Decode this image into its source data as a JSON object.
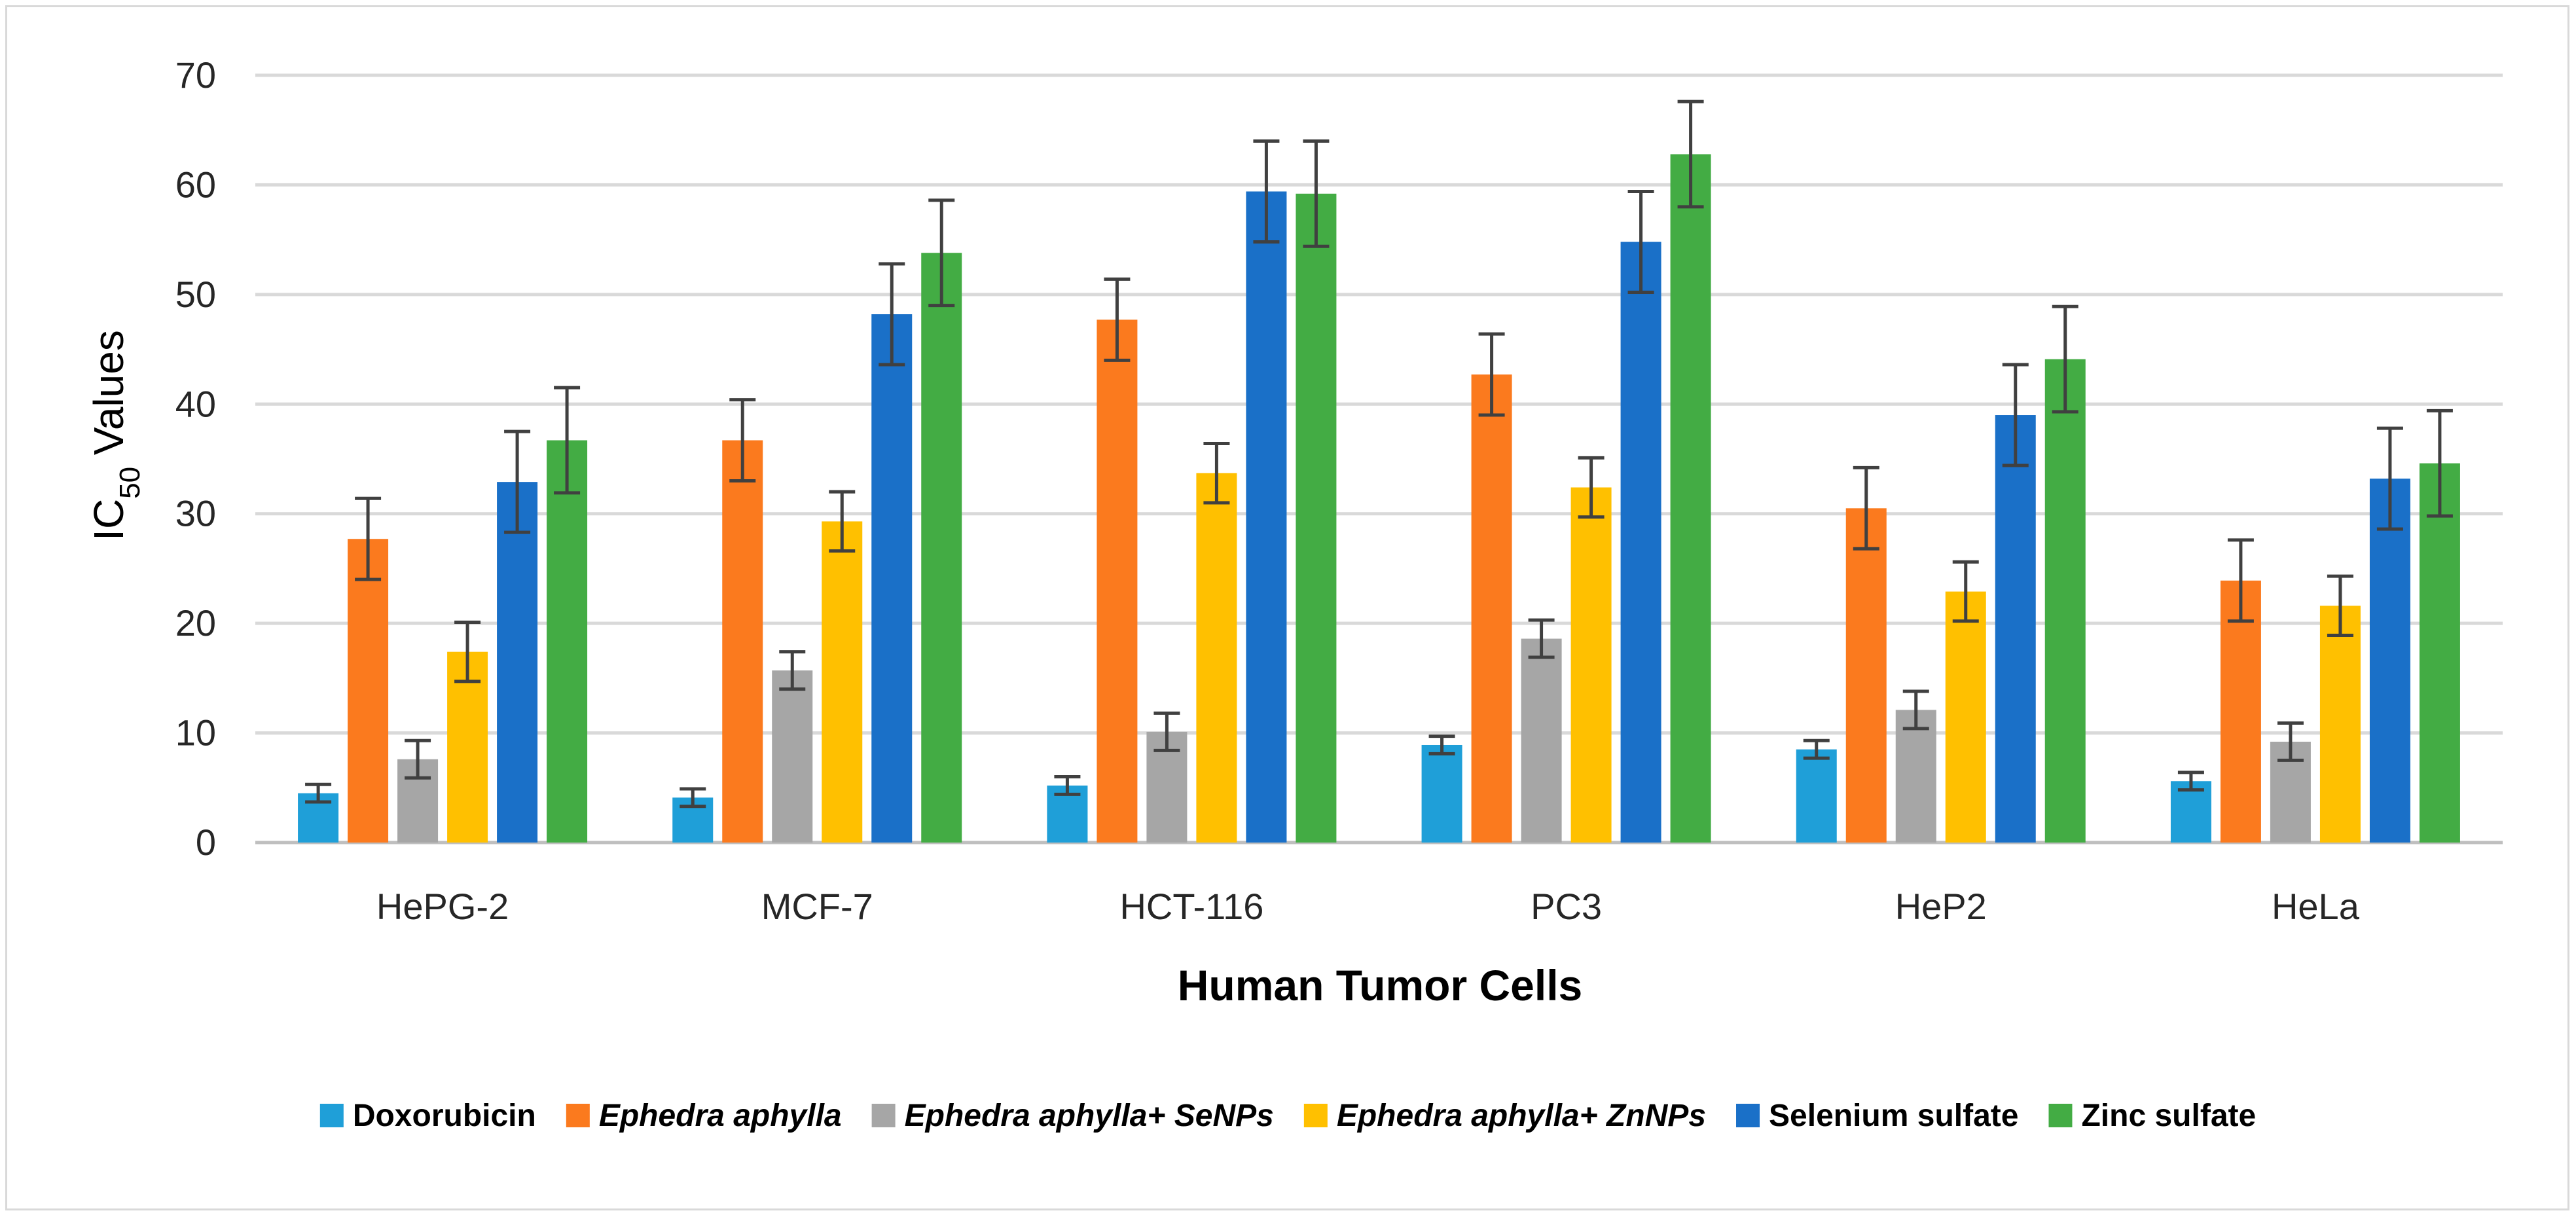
{
  "chart_data": {
    "type": "bar",
    "title": "",
    "xlabel": "Human Tumor Cells",
    "ylabel_main": "IC",
    "ylabel_sub": "50",
    "ylabel_rest": " Values",
    "ylim": [
      0,
      70
    ],
    "yticks": [
      0,
      10,
      20,
      30,
      40,
      50,
      60,
      70
    ],
    "grid": true,
    "legend_position": "bottom",
    "categories": [
      "HePG-2",
      "MCF-7",
      "HCT-116",
      "PC3",
      "HeP2",
      "HeLa"
    ],
    "series": [
      {
        "name": "Doxorubicin",
        "italic": false,
        "color": "#1f9fd8",
        "values": [
          4.5,
          4.1,
          5.2,
          8.9,
          8.5,
          5.6
        ],
        "errors": [
          0.8,
          0.8,
          0.8,
          0.8,
          0.8,
          0.8
        ]
      },
      {
        "name": "Ephedra aphylla",
        "italic": true,
        "color": "#fb7a1e",
        "values": [
          27.7,
          36.7,
          47.7,
          42.7,
          30.5,
          23.9
        ],
        "errors": [
          3.7,
          3.7,
          3.7,
          3.7,
          3.7,
          3.7
        ]
      },
      {
        "name": "Ephedra aphylla+ SeNPs",
        "italic": true,
        "color": "#a6a6a6",
        "values": [
          7.6,
          15.7,
          10.1,
          18.6,
          12.1,
          9.2
        ],
        "errors": [
          1.7,
          1.7,
          1.7,
          1.7,
          1.7,
          1.7
        ]
      },
      {
        "name": "Ephedra aphylla+ ZnNPs",
        "italic": true,
        "color": "#ffc000",
        "values": [
          17.4,
          29.3,
          33.7,
          32.4,
          22.9,
          21.6
        ],
        "errors": [
          2.7,
          2.7,
          2.7,
          2.7,
          2.7,
          2.7
        ]
      },
      {
        "name": "Selenium sulfate",
        "italic": false,
        "color": "#1a70c8",
        "values": [
          32.9,
          48.2,
          59.4,
          54.8,
          39.0,
          33.2
        ],
        "errors": [
          4.6,
          4.6,
          4.6,
          4.6,
          4.6,
          4.6
        ]
      },
      {
        "name": "Zinc sulfate",
        "italic": false,
        "color": "#43ac44",
        "values": [
          36.7,
          53.8,
          59.2,
          62.8,
          44.1,
          34.6
        ],
        "errors": [
          4.8,
          4.8,
          4.8,
          4.8,
          4.8,
          4.8
        ]
      }
    ]
  }
}
